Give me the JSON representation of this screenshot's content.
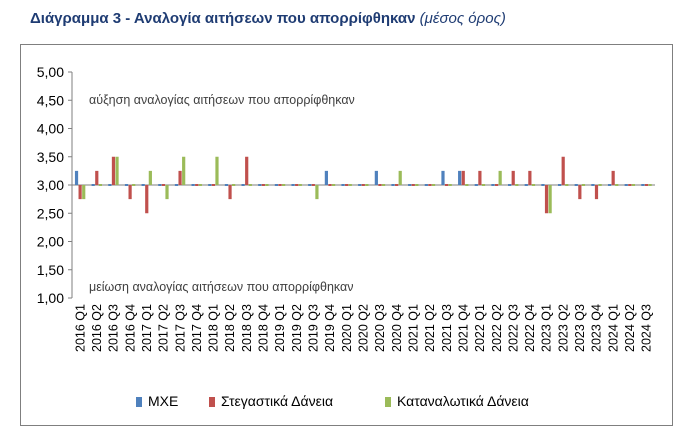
{
  "title": {
    "main": "Διάγραμμα 3 - Αναλογία αιτήσεων που απορρίφθηκαν",
    "sub": "(μέσος όρος)"
  },
  "chart_data": {
    "type": "bar",
    "ylim": [
      1.0,
      5.0
    ],
    "y_ticks": [
      "1,00",
      "1,50",
      "2,00",
      "2,50",
      "3,00",
      "3,50",
      "4,00",
      "4,50",
      "5,00"
    ],
    "baseline": 3.0,
    "grid": false,
    "legend_position": "bottom",
    "annotations": {
      "top": "αύξηση αναλογίας αιτήσεων που απορρίφθηκαν",
      "bottom": "μείωση αναλογίας αιτήσεων που απορρίφθηκαν"
    },
    "categories": [
      "2016 Q1",
      "2016 Q2",
      "2016 Q3",
      "2016 Q4",
      "2017 Q1",
      "2017 Q2",
      "2017 Q3",
      "2017 Q4",
      "2018 Q1",
      "2018 Q2",
      "2018 Q3",
      "2018 Q4",
      "2019 Q1",
      "2019 Q2",
      "2019 Q3",
      "2019 Q4",
      "2020 Q1",
      "2020 Q2",
      "2020 Q3",
      "2020 Q4",
      "2021 Q1",
      "2021 Q2",
      "2021 Q3",
      "2021 Q4",
      "2022 Q1",
      "2022 Q2",
      "2022 Q3",
      "2022 Q4",
      "2023 Q1",
      "2023 Q2",
      "2023 Q3",
      "2023 Q4",
      "2024 Q1",
      "2024 Q2",
      "2024 Q3"
    ],
    "series": [
      {
        "name": "ΜΧΕ",
        "color": "#4f81bd",
        "values": [
          3.25,
          3.0,
          3.0,
          3.0,
          3.0,
          3.0,
          3.0,
          3.0,
          3.0,
          3.0,
          3.0,
          3.0,
          3.0,
          3.0,
          3.0,
          3.25,
          3.0,
          3.0,
          3.25,
          3.0,
          3.0,
          3.0,
          3.25,
          3.25,
          3.0,
          3.0,
          3.0,
          3.0,
          3.0,
          3.0,
          3.0,
          3.0,
          3.0,
          3.0,
          3.0
        ]
      },
      {
        "name": "Στεγαστικά Δάνεια",
        "color": "#c0504d",
        "values": [
          2.75,
          3.25,
          3.5,
          2.75,
          2.5,
          3.0,
          3.25,
          3.0,
          3.0,
          2.75,
          3.5,
          3.0,
          3.0,
          3.0,
          3.0,
          3.0,
          3.0,
          3.0,
          3.0,
          3.0,
          3.0,
          3.0,
          3.0,
          3.25,
          3.25,
          3.0,
          3.25,
          3.25,
          2.5,
          3.5,
          2.75,
          2.75,
          3.25,
          3.0,
          3.0
        ]
      },
      {
        "name": "Καταναλωτικά Δάνεια",
        "color": "#9bbb59",
        "values": [
          2.75,
          3.0,
          3.5,
          3.0,
          3.25,
          2.75,
          3.5,
          3.0,
          3.5,
          3.0,
          3.0,
          3.0,
          3.0,
          3.0,
          2.75,
          3.0,
          3.0,
          3.0,
          3.0,
          3.25,
          3.0,
          3.0,
          3.0,
          3.0,
          3.0,
          3.25,
          3.0,
          3.0,
          2.5,
          3.0,
          3.0,
          3.0,
          3.0,
          3.0,
          3.0
        ]
      }
    ]
  }
}
